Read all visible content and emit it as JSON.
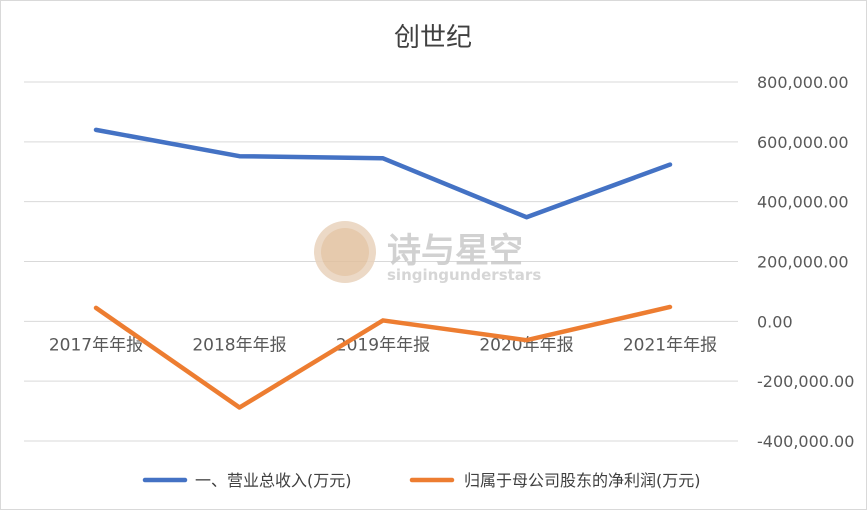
{
  "chart_data": {
    "type": "line",
    "title": "创世纪",
    "categories": [
      "2017年年报",
      "2018年年报",
      "2019年年报",
      "2020年年报",
      "2021年年报"
    ],
    "series": [
      {
        "name": "一、营业总收入(万元)",
        "color": "#4472C4",
        "values": [
          640000,
          552000,
          545000,
          348000,
          524000
        ]
      },
      {
        "name": "归属于母公司股东的净利润(万元)",
        "color": "#ED7D31",
        "values": [
          45000,
          -288000,
          3000,
          -63000,
          48000
        ]
      }
    ],
    "ylim": [
      -400000,
      800000
    ],
    "yticks": [
      800000,
      600000,
      400000,
      200000,
      0,
      -200000,
      -400000
    ],
    "ytick_labels": [
      "800,000.00",
      "600,000.00",
      "400,000.00",
      "200,000.00",
      "0.00",
      "-200,000.00",
      "-400,000.00"
    ],
    "grid": true,
    "legend_position": "bottom"
  },
  "watermark": {
    "text": "诗与星空",
    "subtext": "singingunderstars"
  }
}
